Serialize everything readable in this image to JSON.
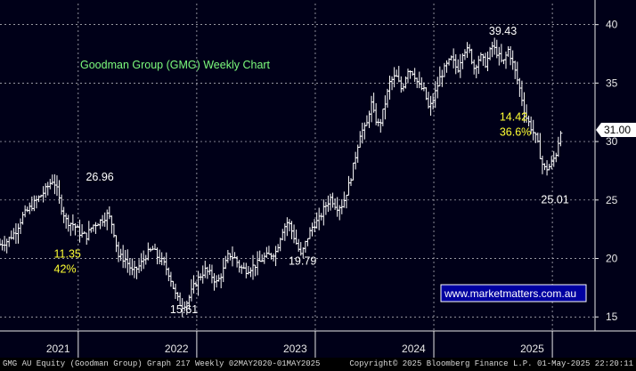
{
  "chart_data": {
    "type": "ohlc",
    "title": "Goodman Group (GMG) Weekly Chart",
    "title_color": "#7CFC7C",
    "last_price_label": "31.00",
    "x_axis_labels": [
      "2021",
      "2022",
      "2023",
      "2024",
      "2025"
    ],
    "x_axis_label_dates": [
      2021.0,
      2022.0,
      2023.0,
      2024.0,
      2025.0
    ],
    "y_axis_ticks": [
      15,
      20,
      25,
      30,
      35,
      40
    ],
    "ylim": [
      13.8,
      41.8
    ],
    "xlim": [
      2020.34,
      2025.36
    ],
    "grid": true,
    "annotations": [
      {
        "text": "26.96",
        "x": 2021.17,
        "y": 26.96,
        "color": "#ffffff"
      },
      {
        "text": "15.61",
        "x": 2021.88,
        "y": 15.61,
        "color": "#ffffff"
      },
      {
        "text": "19.79",
        "x": 2022.88,
        "y": 19.79,
        "color": "#ffffff"
      },
      {
        "text": "39.43",
        "x": 2024.57,
        "y": 39.43,
        "color": "#ffffff"
      },
      {
        "text": "25.01",
        "x": 2025.01,
        "y": 25.01,
        "color": "#ffffff"
      },
      {
        "text": "11.35",
        "x": 2020.9,
        "y": 20.4,
        "color": "#ffff33"
      },
      {
        "text": "42%",
        "x": 2020.9,
        "y": 19.1,
        "color": "#ffff33"
      },
      {
        "text": "14.42",
        "x": 2024.66,
        "y": 32.1,
        "color": "#ffff33"
      },
      {
        "text": "36.6%",
        "x": 2024.66,
        "y": 30.8,
        "color": "#ffff33"
      }
    ],
    "price_anchors": [
      [
        2020.34,
        21.2
      ],
      [
        2020.4,
        21.5
      ],
      [
        2020.47,
        22.3
      ],
      [
        2020.53,
        23.6
      ],
      [
        2020.59,
        24.3
      ],
      [
        2020.66,
        25.1
      ],
      [
        2020.72,
        25.8
      ],
      [
        2020.78,
        26.7
      ],
      [
        2020.81,
        26.3
      ],
      [
        2020.85,
        24.6
      ],
      [
        2020.9,
        23.2
      ],
      [
        2020.96,
        22.9
      ],
      [
        2021.02,
        22.1
      ],
      [
        2021.07,
        21.9
      ],
      [
        2021.12,
        22.8
      ],
      [
        2021.2,
        23.3
      ],
      [
        2021.25,
        23.8
      ],
      [
        2021.29,
        22.8
      ],
      [
        2021.34,
        20.2
      ],
      [
        2021.4,
        19.9
      ],
      [
        2021.46,
        18.8
      ],
      [
        2021.52,
        19.4
      ],
      [
        2021.58,
        20.4
      ],
      [
        2021.63,
        20.8
      ],
      [
        2021.67,
        20.1
      ],
      [
        2021.72,
        19.6
      ],
      [
        2021.77,
        18.6
      ],
      [
        2021.82,
        16.9
      ],
      [
        2021.87,
        15.9
      ],
      [
        2021.92,
        16.3
      ],
      [
        2021.97,
        17.5
      ],
      [
        2022.02,
        18.4
      ],
      [
        2022.07,
        19.0
      ],
      [
        2022.12,
        18.6
      ],
      [
        2022.17,
        17.9
      ],
      [
        2022.22,
        18.9
      ],
      [
        2022.27,
        20.4
      ],
      [
        2022.32,
        20.0
      ],
      [
        2022.37,
        19.2
      ],
      [
        2022.42,
        19.0
      ],
      [
        2022.47,
        19.3
      ],
      [
        2022.52,
        19.6
      ],
      [
        2022.57,
        20.1
      ],
      [
        2022.62,
        20.3
      ],
      [
        2022.67,
        20.6
      ],
      [
        2022.72,
        22.4
      ],
      [
        2022.77,
        23.2
      ],
      [
        2022.8,
        22.4
      ],
      [
        2022.84,
        21.3
      ],
      [
        2022.88,
        20.2
      ],
      [
        2022.93,
        21.7
      ],
      [
        2022.98,
        22.8
      ],
      [
        2023.03,
        23.3
      ],
      [
        2023.08,
        24.4
      ],
      [
        2023.13,
        25.2
      ],
      [
        2023.18,
        24.4
      ],
      [
        2023.23,
        24.6
      ],
      [
        2023.29,
        26.5
      ],
      [
        2023.33,
        28.3
      ],
      [
        2023.38,
        30.8
      ],
      [
        2023.43,
        31.2
      ],
      [
        2023.47,
        33.4
      ],
      [
        2023.5,
        32.1
      ],
      [
        2023.54,
        31.3
      ],
      [
        2023.58,
        32.9
      ],
      [
        2023.63,
        35.1
      ],
      [
        2023.68,
        35.6
      ],
      [
        2023.73,
        34.4
      ],
      [
        2023.78,
        36.2
      ],
      [
        2023.83,
        35.9
      ],
      [
        2023.87,
        34.8
      ],
      [
        2023.92,
        34.3
      ],
      [
        2023.96,
        32.7
      ],
      [
        2024.0,
        33.8
      ],
      [
        2024.05,
        35.4
      ],
      [
        2024.1,
        36.4
      ],
      [
        2024.15,
        37.1
      ],
      [
        2024.2,
        36.1
      ],
      [
        2024.25,
        37.9
      ],
      [
        2024.3,
        37.7
      ],
      [
        2024.34,
        36.3
      ],
      [
        2024.39,
        37.3
      ],
      [
        2024.44,
        36.6
      ],
      [
        2024.49,
        38.2
      ],
      [
        2024.54,
        37.5
      ],
      [
        2024.58,
        36.6
      ],
      [
        2024.63,
        37.9
      ],
      [
        2024.68,
        36.2
      ],
      [
        2024.73,
        34.3
      ],
      [
        2024.77,
        32.3
      ],
      [
        2024.82,
        31.2
      ],
      [
        2024.87,
        30.1
      ],
      [
        2024.91,
        28.2
      ],
      [
        2024.94,
        27.6
      ],
      [
        2024.98,
        27.9
      ],
      [
        2025.03,
        28.9
      ],
      [
        2025.07,
        31.0
      ]
    ]
  },
  "watermark": "www.marketmatters.com.au",
  "footer": {
    "left": "GMG AU Equity (Goodman Group) Graph 217  Weekly 02MAY2020-01MAY2025",
    "right": "Copyright© 2025 Bloomberg Finance L.P.        01-May-2025 22:20:11"
  },
  "colors": {
    "background": "#000018",
    "grid": "#c9c9d0",
    "bars": "#ffffff",
    "axis_text": "#e8e8e8",
    "highlight_text": "#ffff33",
    "watermark_text": "#ffffff",
    "watermark_border": "#ffffff"
  }
}
